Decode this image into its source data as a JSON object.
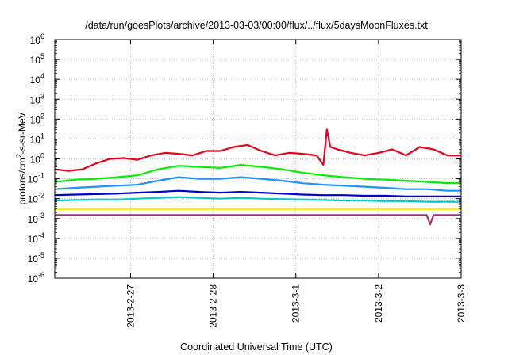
{
  "chart_data": {
    "type": "line",
    "title": "/data/run/goesPlots/archive/2013-03-03/00:00/flux/../flux/5daysMoonFluxes.txt",
    "xlabel": "Coordinated Universal Time (UTC)",
    "ylabel_parts": [
      "protons/cm",
      "2",
      "-s-sr-MeV"
    ],
    "x_scale": "time",
    "x_range": [
      "2013-02-26 02:00",
      "2013-03-03 00:00"
    ],
    "x_ticks": [
      "2013-2-27",
      "2013-2-28",
      "2013-3-1",
      "2013-3-2",
      "2013-3-3"
    ],
    "y_scale": "log",
    "y_range": [
      1e-06,
      1000000.0
    ],
    "y_tick_exponents": [
      "-6",
      "-5",
      "-4",
      "-3",
      "-2",
      "-1",
      "0",
      "1",
      "2",
      "3",
      "4",
      "5",
      "6"
    ],
    "y_tick_base": "10",
    "grid": true,
    "legend": "none",
    "series": [
      {
        "color": "#e8001c",
        "x": [
          "2013-02-26 02:00",
          "2013-02-26 06:00",
          "2013-02-26 10:00",
          "2013-02-26 14:00",
          "2013-02-26 18:00",
          "2013-02-26 22:00",
          "2013-02-27 02:00",
          "2013-02-27 06:00",
          "2013-02-27 10:00",
          "2013-02-27 14:00",
          "2013-02-27 18:00",
          "2013-02-27 22:00",
          "2013-02-28 02:00",
          "2013-02-28 06:00",
          "2013-02-28 10:00",
          "2013-02-28 14:00",
          "2013-02-28 18:00",
          "2013-02-28 22:00",
          "2013-03-01 02:00",
          "2013-03-01 06:00",
          "2013-03-01 08:00",
          "2013-03-01 09:00",
          "2013-03-01 10:00",
          "2013-03-01 12:00",
          "2013-03-01 16:00",
          "2013-03-01 20:00",
          "2013-03-02 00:00",
          "2013-03-02 04:00",
          "2013-03-02 08:00",
          "2013-03-02 12:00",
          "2013-03-02 16:00",
          "2013-03-02 20:00",
          "2013-03-03 00:00"
        ],
        "y": [
          0.3,
          0.25,
          0.3,
          0.6,
          1.0,
          1.1,
          0.9,
          1.5,
          2.0,
          1.8,
          1.5,
          2.5,
          2.5,
          4.0,
          5.0,
          2.5,
          1.5,
          2.0,
          1.8,
          1.5,
          0.5,
          30,
          4.0,
          3.0,
          2.0,
          1.5,
          2.0,
          3.0,
          1.5,
          4.0,
          3.0,
          1.5,
          1.5
        ]
      },
      {
        "color": "#00ee00",
        "x": [
          "2013-02-26 02:00",
          "2013-02-26 08:00",
          "2013-02-26 14:00",
          "2013-02-26 20:00",
          "2013-02-27 02:00",
          "2013-02-27 08:00",
          "2013-02-27 14:00",
          "2013-02-27 20:00",
          "2013-02-28 02:00",
          "2013-02-28 08:00",
          "2013-02-28 14:00",
          "2013-02-28 20:00",
          "2013-03-01 02:00",
          "2013-03-01 08:00",
          "2013-03-01 14:00",
          "2013-03-01 20:00",
          "2013-03-02 02:00",
          "2013-03-02 08:00",
          "2013-03-02 14:00",
          "2013-03-02 20:00",
          "2013-03-03 00:00"
        ],
        "y": [
          0.07,
          0.09,
          0.1,
          0.12,
          0.15,
          0.3,
          0.45,
          0.4,
          0.35,
          0.5,
          0.4,
          0.3,
          0.2,
          0.15,
          0.12,
          0.1,
          0.09,
          0.08,
          0.07,
          0.06,
          0.06
        ]
      },
      {
        "color": "#1e90ff",
        "x": [
          "2013-02-26 02:00",
          "2013-02-26 08:00",
          "2013-02-26 14:00",
          "2013-02-26 20:00",
          "2013-02-27 02:00",
          "2013-02-27 08:00",
          "2013-02-27 14:00",
          "2013-02-27 20:00",
          "2013-02-28 02:00",
          "2013-02-28 08:00",
          "2013-02-28 14:00",
          "2013-02-28 20:00",
          "2013-03-01 02:00",
          "2013-03-01 08:00",
          "2013-03-01 14:00",
          "2013-03-01 20:00",
          "2013-03-02 02:00",
          "2013-03-02 08:00",
          "2013-03-02 14:00",
          "2013-03-02 20:00",
          "2013-03-03 00:00"
        ],
        "y": [
          0.03,
          0.035,
          0.04,
          0.045,
          0.05,
          0.08,
          0.12,
          0.1,
          0.1,
          0.12,
          0.1,
          0.08,
          0.06,
          0.05,
          0.045,
          0.04,
          0.035,
          0.03,
          0.03,
          0.025,
          0.025
        ]
      },
      {
        "color": "#0000cd",
        "x": [
          "2013-02-26 02:00",
          "2013-02-26 08:00",
          "2013-02-26 14:00",
          "2013-02-26 20:00",
          "2013-02-27 02:00",
          "2013-02-27 08:00",
          "2013-02-27 14:00",
          "2013-02-27 20:00",
          "2013-02-28 02:00",
          "2013-02-28 08:00",
          "2013-02-28 14:00",
          "2013-02-28 20:00",
          "2013-03-01 02:00",
          "2013-03-01 08:00",
          "2013-03-01 14:00",
          "2013-03-01 20:00",
          "2013-03-02 02:00",
          "2013-03-02 08:00",
          "2013-03-02 14:00",
          "2013-03-02 20:00",
          "2013-03-03 00:00"
        ],
        "y": [
          0.015,
          0.016,
          0.017,
          0.018,
          0.02,
          0.022,
          0.025,
          0.022,
          0.02,
          0.022,
          0.02,
          0.018,
          0.016,
          0.015,
          0.015,
          0.014,
          0.014,
          0.013,
          0.013,
          0.013,
          0.013
        ]
      },
      {
        "color": "#00c8c8",
        "x": [
          "2013-02-26 02:00",
          "2013-02-26 08:00",
          "2013-02-26 14:00",
          "2013-02-26 20:00",
          "2013-02-27 02:00",
          "2013-02-27 08:00",
          "2013-02-27 14:00",
          "2013-02-27 20:00",
          "2013-02-28 02:00",
          "2013-02-28 08:00",
          "2013-02-28 14:00",
          "2013-02-28 20:00",
          "2013-03-01 02:00",
          "2013-03-01 08:00",
          "2013-03-01 14:00",
          "2013-03-01 20:00",
          "2013-03-02 02:00",
          "2013-03-02 08:00",
          "2013-03-02 14:00",
          "2013-03-02 20:00",
          "2013-03-03 00:00"
        ],
        "y": [
          0.008,
          0.0085,
          0.009,
          0.009,
          0.01,
          0.011,
          0.012,
          0.011,
          0.01,
          0.011,
          0.01,
          0.0095,
          0.009,
          0.0085,
          0.008,
          0.008,
          0.0075,
          0.0075,
          0.007,
          0.007,
          0.007
        ]
      },
      {
        "color": "#ffee00",
        "x": [
          "2013-02-26 02:00",
          "2013-02-27 02:00",
          "2013-02-28 02:00",
          "2013-03-01 02:00",
          "2013-03-02 02:00",
          "2013-03-03 00:00"
        ],
        "y": [
          0.003,
          0.003,
          0.003,
          0.003,
          0.003,
          0.003
        ]
      },
      {
        "color": "#a0306e",
        "x": [
          "2013-02-26 02:00",
          "2013-02-27 02:00",
          "2013-02-28 02:00",
          "2013-03-01 02:00",
          "2013-03-02 02:00",
          "2013-03-02 14:00",
          "2013-03-02 15:00",
          "2013-03-02 16:00",
          "2013-03-02 20:00",
          "2013-03-03 00:00"
        ],
        "y": [
          0.0015,
          0.0015,
          0.0015,
          0.0015,
          0.0015,
          0.0015,
          0.0005,
          0.0015,
          0.0015,
          0.0015
        ]
      }
    ]
  }
}
